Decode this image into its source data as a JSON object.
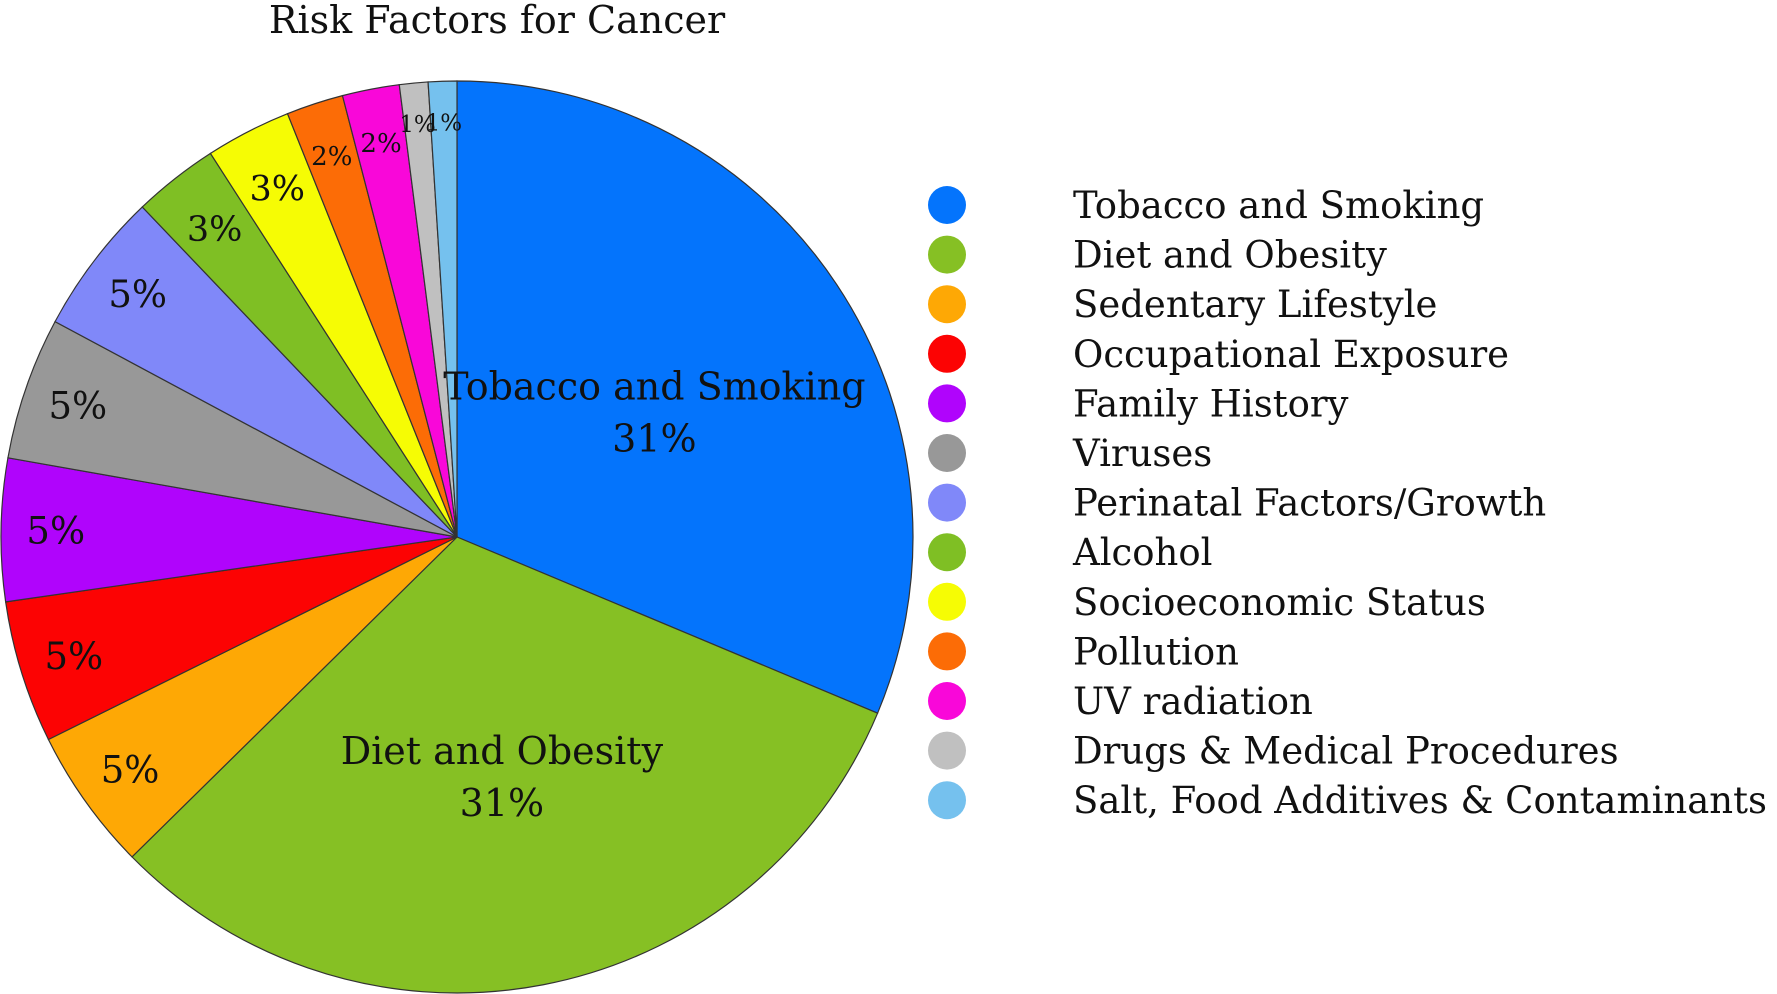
{
  "chart_data": {
    "type": "pie",
    "title": "Risk Factors for Cancer",
    "slices": [
      {
        "label": "Tobacco and Smoking",
        "value": 31,
        "display": "31%",
        "color": "#0474fc"
      },
      {
        "label": "Diet and Obesity",
        "value": 31,
        "display": "31%",
        "color": "#86c024"
      },
      {
        "label": "Sedentary Lifestyle",
        "value": 5,
        "display": "5%",
        "color": "#fea805"
      },
      {
        "label": "Occupational Exposure",
        "value": 5,
        "display": "5%",
        "color": "#fc0303"
      },
      {
        "label": "Family History",
        "value": 5,
        "display": "5%",
        "color": "#b004fc"
      },
      {
        "label": "Viruses",
        "value": 5,
        "display": "5%",
        "color": "#989898"
      },
      {
        "label": "Perinatal Factors/Growth",
        "value": 5,
        "display": "5%",
        "color": "#8088f9"
      },
      {
        "label": "Alcohol",
        "value": 3,
        "display": "3%",
        "color": "#7fbf24"
      },
      {
        "label": "Socioeconomic Status",
        "value": 3,
        "display": "3%",
        "color": "#f6fc04"
      },
      {
        "label": "Pollution",
        "value": 2,
        "display": "2%",
        "color": "#fc6c06"
      },
      {
        "label": "UV radiation",
        "value": 2,
        "display": "2%",
        "color": "#f907d9"
      },
      {
        "label": "Drugs & Medical Procedures",
        "value": 1,
        "display": "1%",
        "color": "#c0c0c0"
      },
      {
        "label": "Salt, Food Additives & Contaminants",
        "value": 1,
        "display": "1%",
        "color": "#75c1ee"
      }
    ],
    "legend_position": "right",
    "start": "top, clockwise"
  }
}
